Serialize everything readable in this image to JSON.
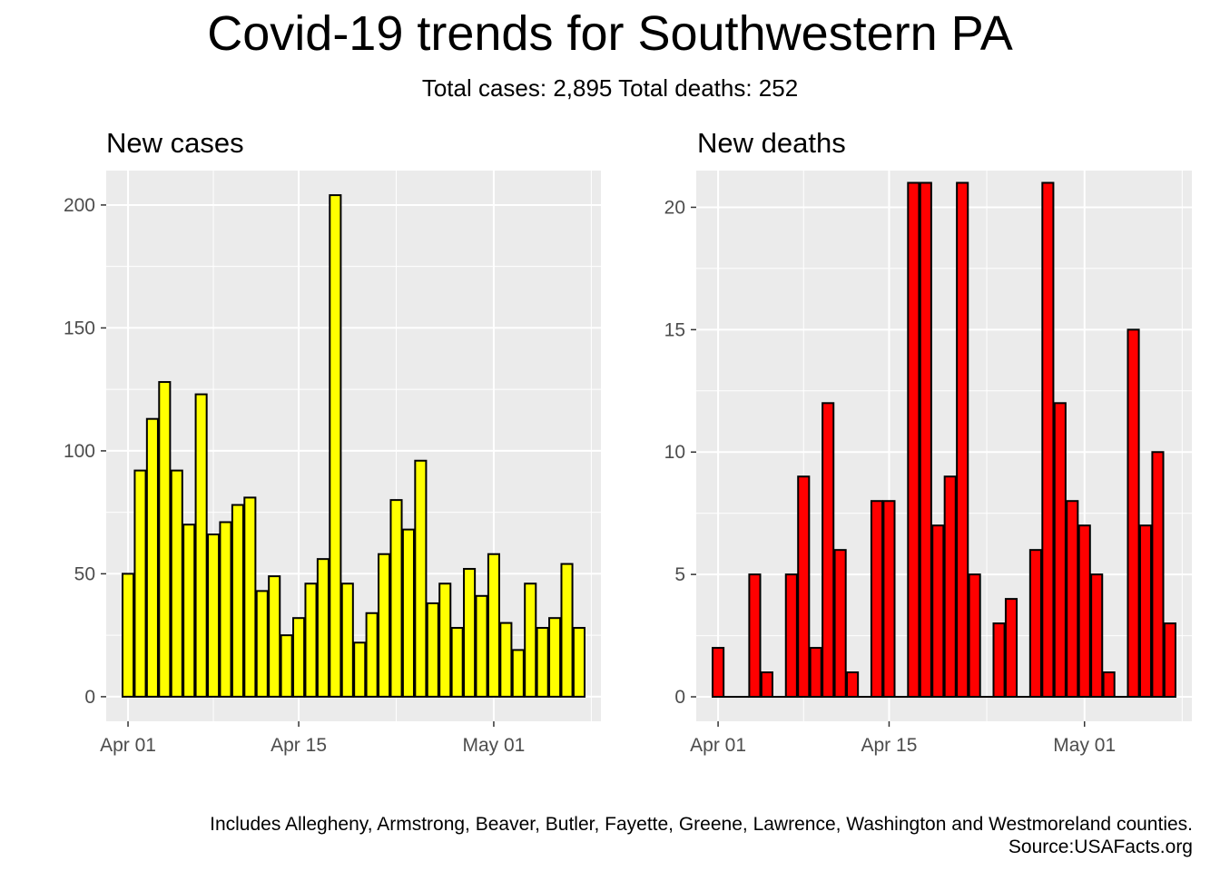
{
  "title": "Covid-19 trends for Southwestern PA",
  "subtitle": "Total cases: 2,895  Total deaths: 252",
  "caption": {
    "line1": "Includes Allegheny, Armstrong, Beaver, Butler, Fayette, Greene, Lawrence, Washington and Westmoreland counties.",
    "line2": "Source:USAFacts.org"
  },
  "colors": {
    "panel_background": "#ebebeb",
    "grid": "#ffffff",
    "cases_fill": "#ffff00",
    "deaths_fill": "#ff0000",
    "bar_outline": "#000000"
  },
  "chart_data": [
    {
      "type": "bar",
      "title": "New cases",
      "xlabel": "",
      "ylabel": "",
      "grid": true,
      "x_ticks": [
        "Apr 01",
        "Apr 15",
        "May 01"
      ],
      "y_ticks": [
        0,
        50,
        100,
        150,
        200
      ],
      "ylim": [
        -10,
        214
      ],
      "categories": [
        "2020-04-01",
        "2020-04-02",
        "2020-04-03",
        "2020-04-04",
        "2020-04-05",
        "2020-04-06",
        "2020-04-07",
        "2020-04-08",
        "2020-04-09",
        "2020-04-10",
        "2020-04-11",
        "2020-04-12",
        "2020-04-13",
        "2020-04-14",
        "2020-04-15",
        "2020-04-16",
        "2020-04-17",
        "2020-04-18",
        "2020-04-19",
        "2020-04-20",
        "2020-04-21",
        "2020-04-22",
        "2020-04-23",
        "2020-04-24",
        "2020-04-25",
        "2020-04-26",
        "2020-04-27",
        "2020-04-28",
        "2020-04-29",
        "2020-04-30",
        "2020-05-01",
        "2020-05-02",
        "2020-05-03",
        "2020-05-04",
        "2020-05-05",
        "2020-05-06",
        "2020-05-07",
        "2020-05-08"
      ],
      "values": [
        50,
        92,
        113,
        128,
        92,
        70,
        123,
        66,
        71,
        78,
        81,
        43,
        49,
        25,
        32,
        46,
        56,
        204,
        46,
        22,
        34,
        58,
        80,
        68,
        96,
        38,
        46,
        28,
        52,
        41,
        58,
        30,
        19,
        46,
        28,
        32,
        54,
        28
      ]
    },
    {
      "type": "bar",
      "title": "New deaths",
      "xlabel": "",
      "ylabel": "",
      "grid": true,
      "x_ticks": [
        "Apr 01",
        "Apr 15",
        "May 01"
      ],
      "y_ticks": [
        0,
        5,
        10,
        15,
        20
      ],
      "ylim": [
        -1,
        21.5
      ],
      "categories": [
        "2020-04-01",
        "2020-04-02",
        "2020-04-03",
        "2020-04-04",
        "2020-04-05",
        "2020-04-06",
        "2020-04-07",
        "2020-04-08",
        "2020-04-09",
        "2020-04-10",
        "2020-04-11",
        "2020-04-12",
        "2020-04-13",
        "2020-04-14",
        "2020-04-15",
        "2020-04-16",
        "2020-04-17",
        "2020-04-18",
        "2020-04-19",
        "2020-04-20",
        "2020-04-21",
        "2020-04-22",
        "2020-04-23",
        "2020-04-24",
        "2020-04-25",
        "2020-04-26",
        "2020-04-27",
        "2020-04-28",
        "2020-04-29",
        "2020-04-30",
        "2020-05-01",
        "2020-05-02",
        "2020-05-03",
        "2020-05-04",
        "2020-05-05",
        "2020-05-06",
        "2020-05-07",
        "2020-05-08"
      ],
      "values": [
        2,
        0,
        0,
        5,
        1,
        0,
        5,
        9,
        2,
        12,
        6,
        1,
        0,
        8,
        8,
        0,
        21,
        21,
        7,
        9,
        21,
        5,
        0,
        3,
        4,
        0,
        6,
        21,
        12,
        8,
        7,
        5,
        1,
        0,
        15,
        7,
        10,
        3
      ]
    }
  ]
}
